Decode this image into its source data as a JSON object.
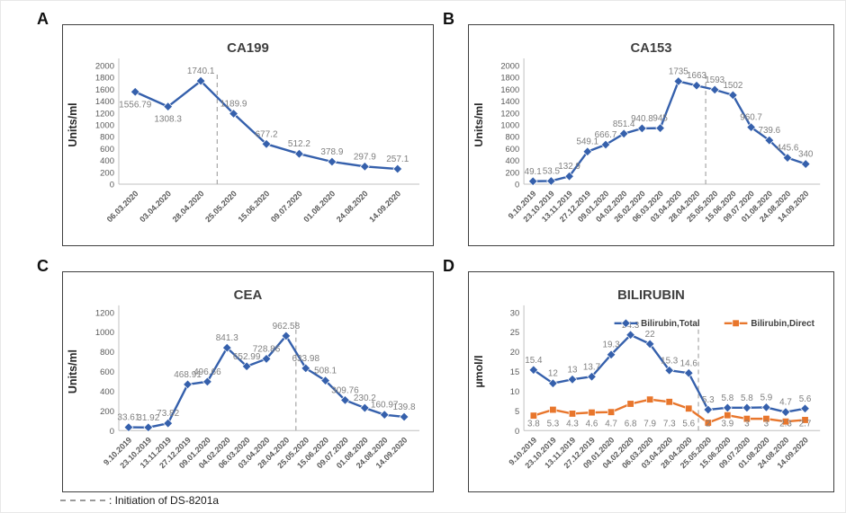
{
  "footnote": {
    "label": ": Initiation of DS-8201a"
  },
  "colors": {
    "series_blue": "#3560ac",
    "series_orange": "#e8762c",
    "data_label_gray": "#7f7f7f",
    "axis_text": "#595959",
    "title_text": "#3f3f3f",
    "dashed_line": "#a6a6a6",
    "axis_line": "#c0c0c0",
    "panel_border": "#3f3f3f"
  },
  "chart_data": [
    {
      "panel": "A",
      "type": "line",
      "title": "CA199",
      "xlabel": "",
      "ylabel": "Units/ml",
      "ylim": [
        0,
        2000
      ],
      "ytick_step": 200,
      "grid": false,
      "legend": {
        "show": false
      },
      "dashed_line": {
        "after_index": 2,
        "meaning": "Initiation of DS-8201a"
      },
      "categories": [
        "06.03.2020",
        "03.04.2020",
        "28.04.2020",
        "25.05.2020",
        "15.06.2020",
        "09.07.2020",
        "01.08.2020",
        "24.08.2020",
        "14.09.2020"
      ],
      "series": [
        {
          "name": "CA199",
          "color": "#3560ac",
          "marker": "diamond",
          "values": [
            1556.79,
            1308.3,
            1740.1,
            1189.9,
            677.2,
            512.2,
            378.9,
            297.9,
            257.1
          ],
          "label_side": [
            "below",
            "below",
            "above",
            "above",
            "above",
            "above",
            "above",
            "above",
            "above"
          ]
        }
      ]
    },
    {
      "panel": "B",
      "type": "line",
      "title": "CA153",
      "xlabel": "",
      "ylabel": "Units/ml",
      "ylim": [
        0,
        2000
      ],
      "ytick_step": 200,
      "grid": false,
      "legend": {
        "show": false
      },
      "dashed_line": {
        "after_index": 9,
        "meaning": "Initiation of DS-8201a"
      },
      "categories": [
        "9.10.2019",
        "23.10.2019",
        "13.11.2019",
        "27.12.2019",
        "09.01.2020",
        "04.02.2020",
        "26.02.2020",
        "06.03.2020",
        "03.04.2020",
        "28.04.2020",
        "25.05.2020",
        "15.06.2020",
        "09.07.2020",
        "01.08.2020",
        "24.08.2020",
        "14.09.2020"
      ],
      "series": [
        {
          "name": "CA153",
          "color": "#3560ac",
          "marker": "diamond",
          "values": [
            49.1,
            53.5,
            132.9,
            549.1,
            666.7,
            851.4,
            940.8,
            945,
            1735,
            1663,
            1593,
            1502,
            960.7,
            739.6,
            445.6,
            340
          ],
          "label_side": "above"
        }
      ]
    },
    {
      "panel": "C",
      "type": "line",
      "title": "CEA",
      "xlabel": "",
      "ylabel": "Units/ml",
      "ylim": [
        0,
        1200
      ],
      "ytick_step": 200,
      "grid": false,
      "legend": {
        "show": false
      },
      "dashed_line": {
        "after_index": 8,
        "meaning": "Initiation of DS-8201a"
      },
      "categories": [
        "9.10.2019",
        "23.10.2019",
        "13.11.2019",
        "27.12.2019",
        "09.01.2020",
        "04.02.2020",
        "06.03.2020",
        "03.04.2020",
        "28.04.2020",
        "25.05.2020",
        "15.06.2020",
        "09.07.2020",
        "01.08.2020",
        "24.08.2020",
        "14.09.2020"
      ],
      "series": [
        {
          "name": "CEA",
          "color": "#3560ac",
          "marker": "diamond",
          "values": [
            33.61,
            31.92,
            73.82,
            468.91,
            496.66,
            841.3,
            652.99,
            728.86,
            962.58,
            633.98,
            508.1,
            309.76,
            230.2,
            160.97,
            139.8
          ],
          "label_side": "above"
        }
      ]
    },
    {
      "panel": "D",
      "type": "line",
      "title": "BILIRUBIN",
      "xlabel": "",
      "ylabel": "µmol/l",
      "ylim": [
        0,
        30
      ],
      "ytick_step": 5,
      "grid": false,
      "legend": {
        "show": true,
        "position": "top-right",
        "entries": [
          "Bilirubin,Total",
          "Bilirubin,Direct"
        ]
      },
      "dashed_line": {
        "after_index": 8,
        "meaning": "Initiation of DS-8201a"
      },
      "categories": [
        "9.10.2019",
        "23.10.2019",
        "13.11.2019",
        "27.12.2019",
        "09.01.2020",
        "04.02.2020",
        "06.03.2020",
        "03.04.2020",
        "28.04.2020",
        "25.05.2020",
        "15.06.2020",
        "09.07.2020",
        "01.08.2020",
        "24.08.2020",
        "14.09.2020"
      ],
      "series": [
        {
          "name": "Bilirubin,Total",
          "color": "#3560ac",
          "marker": "diamond",
          "values": [
            15.4,
            12,
            13,
            13.7,
            19.3,
            24.3,
            22,
            15.3,
            14.6,
            5.3,
            5.8,
            5.8,
            5.9,
            4.7,
            5.6
          ],
          "label_side": "above"
        },
        {
          "name": "Bilirubin,Direct",
          "color": "#e8762c",
          "marker": "square",
          "values": [
            3.8,
            5.3,
            4.3,
            4.6,
            4.7,
            6.8,
            7.9,
            7.3,
            5.6,
            2,
            3.9,
            3,
            3,
            2.3,
            2.7
          ],
          "label_side": "below",
          "label_row": "axis"
        }
      ]
    }
  ],
  "panel_letters": [
    "A",
    "B",
    "C",
    "D"
  ]
}
